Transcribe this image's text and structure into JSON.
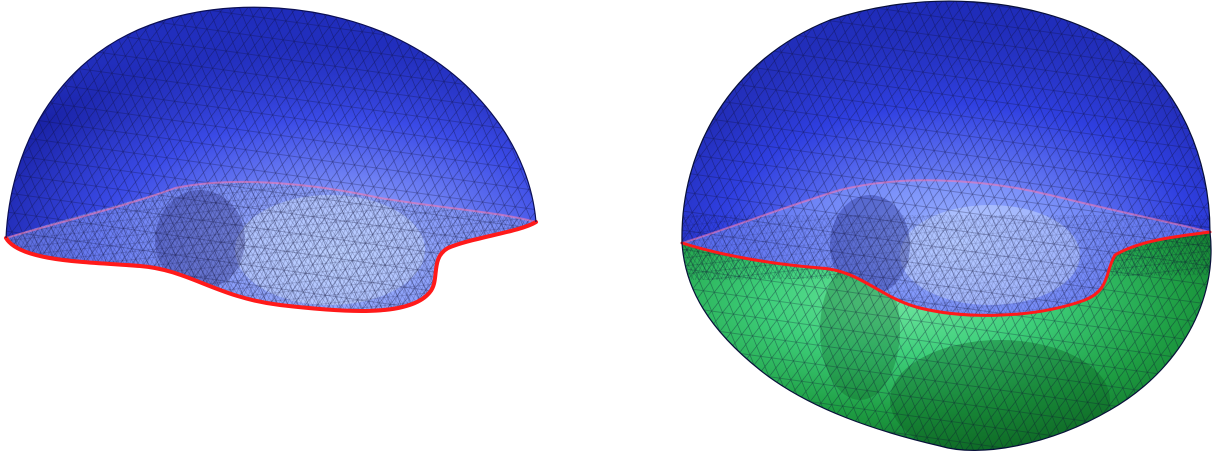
{
  "figure": {
    "panels": [
      {
        "id": "left",
        "description_kind": "open surface mesh (upper cap) with boundary curve",
        "surface_color": "#2a3de0",
        "surface_light_color": "#9fb8ff",
        "boundary_color": "#ff1a1a"
      },
      {
        "id": "right",
        "description_kind": "closed surface mesh split into upper cap and lower part by a curve",
        "upper_color": "#2a3de0",
        "upper_light_color": "#9fb8ff",
        "lower_color": "#17a83a",
        "lower_light_color": "#59e08b",
        "boundary_color": "#ff1a1a"
      }
    ],
    "mesh_line_color": "#0a0a30"
  }
}
